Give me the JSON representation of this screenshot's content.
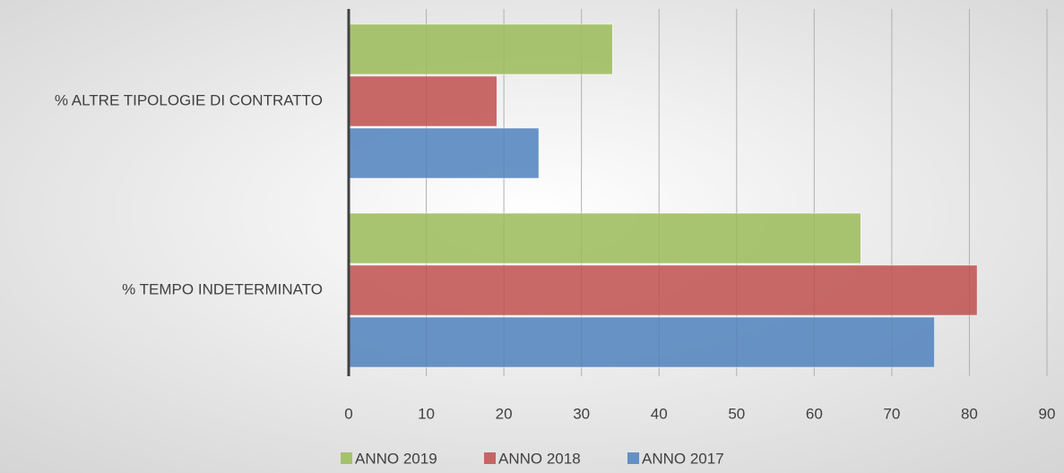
{
  "chart_data": {
    "type": "bar",
    "orientation": "horizontal",
    "categories": [
      "% ALTRE TIPOLOGIE DI  CONTRATTO",
      "% TEMPO INDETERMINATO"
    ],
    "series": [
      {
        "name": "ANNO 2019",
        "color": "#9bbb59",
        "values": [
          34,
          66
        ]
      },
      {
        "name": "ANNO 2018",
        "color": "#c0504d",
        "values": [
          19.1,
          81
        ]
      },
      {
        "name": "ANNO 2017",
        "color": "#4f81bd",
        "values": [
          24.5,
          75.5
        ]
      }
    ],
    "xlim": [
      0,
      90
    ],
    "xticks": [
      0,
      10,
      20,
      30,
      40,
      50,
      60,
      70,
      80,
      90
    ],
    "grid": true
  }
}
